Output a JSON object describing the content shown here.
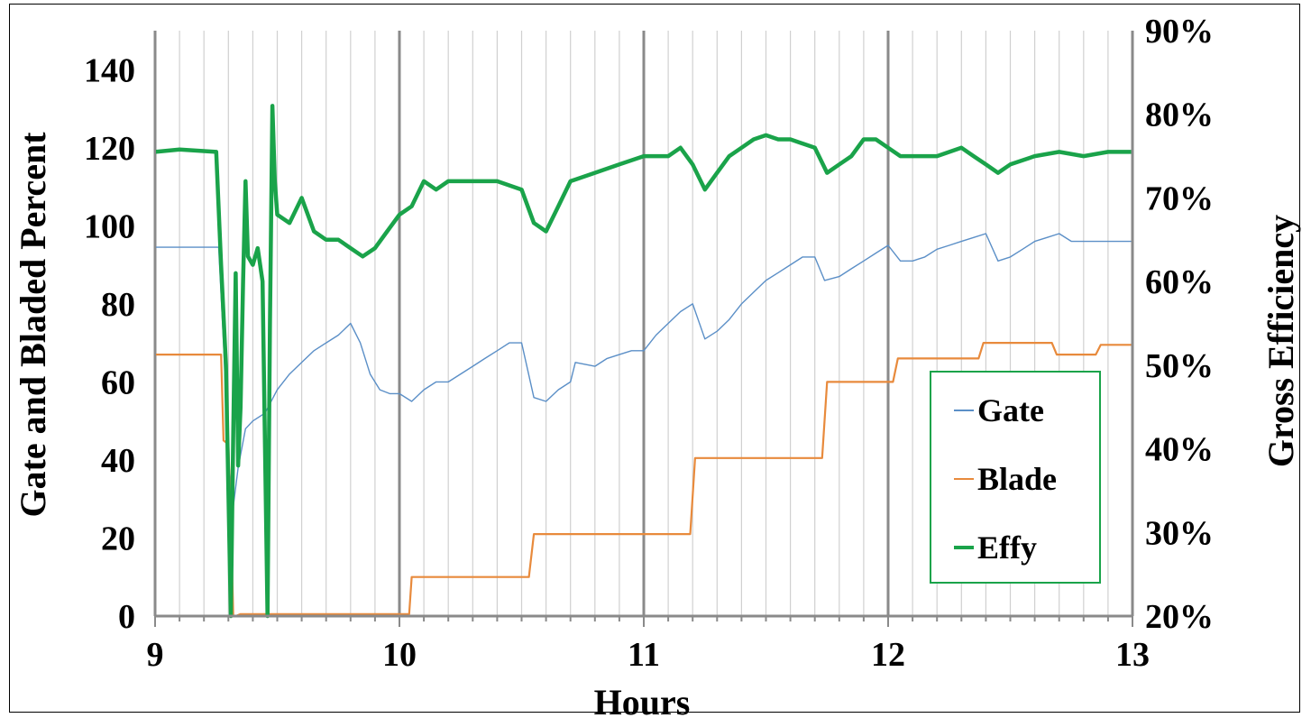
{
  "chart_data": {
    "type": "line",
    "xlabel": "Hours",
    "ylabel": "Gate and Bladed Percent",
    "y2label": "Gross Efficiency",
    "xlim": [
      9,
      13
    ],
    "ylim": [
      0,
      150
    ],
    "y2lim": [
      0.2,
      0.9
    ],
    "xticks": [
      "9",
      "10",
      "11",
      "12",
      "13"
    ],
    "yticks": [
      "0",
      "20",
      "40",
      "60",
      "80",
      "100",
      "120",
      "140"
    ],
    "y2ticks": [
      "20%",
      "30%",
      "40%",
      "50%",
      "60%",
      "70%",
      "80%",
      "90%"
    ],
    "grid": true,
    "legend_position": "bottom-right",
    "legend": [
      "Gate",
      "Blade",
      "Effy"
    ],
    "series": [
      {
        "name": "Gate",
        "axis": "left",
        "color": "#5b8fc7",
        "x": [
          9.0,
          9.26,
          9.28,
          9.3,
          9.32,
          9.34,
          9.37,
          9.4,
          9.45,
          9.5,
          9.55,
          9.6,
          9.65,
          9.7,
          9.75,
          9.8,
          9.84,
          9.88,
          9.92,
          9.96,
          10.0,
          10.05,
          10.1,
          10.15,
          10.2,
          10.3,
          10.35,
          10.4,
          10.45,
          10.5,
          10.55,
          10.6,
          10.65,
          10.7,
          10.72,
          10.8,
          10.85,
          10.9,
          10.95,
          11.0,
          11.05,
          11.1,
          11.15,
          11.2,
          11.25,
          11.3,
          11.35,
          11.4,
          11.45,
          11.5,
          11.55,
          11.6,
          11.65,
          11.7,
          11.74,
          11.8,
          11.85,
          11.9,
          11.95,
          12.0,
          12.05,
          12.1,
          12.15,
          12.2,
          12.25,
          12.3,
          12.35,
          12.4,
          12.45,
          12.5,
          12.55,
          12.6,
          12.65,
          12.7,
          12.75,
          13.0
        ],
        "y": [
          94.5,
          94.5,
          70,
          40,
          28,
          38,
          48,
          50,
          52,
          58,
          62,
          65,
          68,
          70,
          72,
          75,
          70,
          62,
          58,
          57,
          57,
          55,
          58,
          60,
          60,
          64,
          66,
          68,
          70,
          70,
          56,
          55,
          58,
          60,
          65,
          64,
          66,
          67,
          68,
          68,
          72,
          75,
          78,
          80,
          71,
          73,
          76,
          80,
          83,
          86,
          88,
          90,
          92,
          92,
          86,
          87,
          89,
          91,
          93,
          95,
          91,
          91,
          92,
          94,
          95,
          96,
          97,
          98,
          91,
          92,
          94,
          96,
          97,
          98,
          96,
          96
        ]
      },
      {
        "name": "Blade",
        "axis": "left",
        "color": "#e88a3c",
        "x": [
          9.0,
          9.27,
          9.28,
          9.3,
          9.31,
          9.32,
          9.33,
          9.35,
          10.04,
          10.05,
          10.53,
          10.55,
          11.19,
          11.21,
          11.73,
          11.75,
          12.02,
          12.04,
          12.37,
          12.39,
          12.67,
          12.69,
          12.85,
          12.87,
          13.0
        ],
        "y": [
          67,
          67,
          45,
          44,
          25,
          0,
          0,
          0.5,
          0.5,
          10,
          10,
          21,
          21,
          40.5,
          40.5,
          60,
          60,
          66,
          66,
          70,
          70,
          67,
          67,
          69.5,
          69.5
        ]
      },
      {
        "name": "Effy",
        "axis": "right",
        "color": "#1aa34a",
        "x": [
          9.0,
          9.1,
          9.25,
          9.27,
          9.29,
          9.31,
          9.32,
          9.33,
          9.34,
          9.35,
          9.36,
          9.37,
          9.38,
          9.4,
          9.42,
          9.44,
          9.46,
          9.47,
          9.48,
          9.49,
          9.5,
          9.55,
          9.6,
          9.65,
          9.7,
          9.75,
          9.8,
          9.85,
          9.9,
          9.95,
          10.0,
          10.05,
          10.1,
          10.15,
          10.2,
          10.3,
          10.4,
          10.5,
          10.55,
          10.6,
          10.65,
          10.7,
          10.8,
          10.9,
          11.0,
          11.1,
          11.15,
          11.2,
          11.25,
          11.3,
          11.35,
          11.4,
          11.45,
          11.5,
          11.55,
          11.6,
          11.7,
          11.75,
          11.8,
          11.85,
          11.9,
          11.95,
          12.0,
          12.05,
          12.1,
          12.2,
          12.3,
          12.35,
          12.4,
          12.45,
          12.5,
          12.6,
          12.7,
          12.8,
          12.9,
          13.0
        ],
        "y": [
          0.755,
          0.758,
          0.755,
          0.62,
          0.5,
          0.2,
          0.42,
          0.61,
          0.38,
          0.45,
          0.6,
          0.72,
          0.63,
          0.62,
          0.64,
          0.6,
          0.2,
          0.55,
          0.81,
          0.72,
          0.68,
          0.67,
          0.7,
          0.66,
          0.65,
          0.65,
          0.64,
          0.63,
          0.64,
          0.66,
          0.68,
          0.69,
          0.72,
          0.71,
          0.72,
          0.72,
          0.72,
          0.71,
          0.67,
          0.66,
          0.69,
          0.72,
          0.73,
          0.74,
          0.75,
          0.75,
          0.76,
          0.74,
          0.71,
          0.73,
          0.75,
          0.76,
          0.77,
          0.775,
          0.77,
          0.77,
          0.76,
          0.73,
          0.74,
          0.75,
          0.77,
          0.77,
          0.76,
          0.75,
          0.75,
          0.75,
          0.76,
          0.75,
          0.74,
          0.73,
          0.74,
          0.75,
          0.755,
          0.75,
          0.755,
          0.755
        ]
      }
    ]
  }
}
